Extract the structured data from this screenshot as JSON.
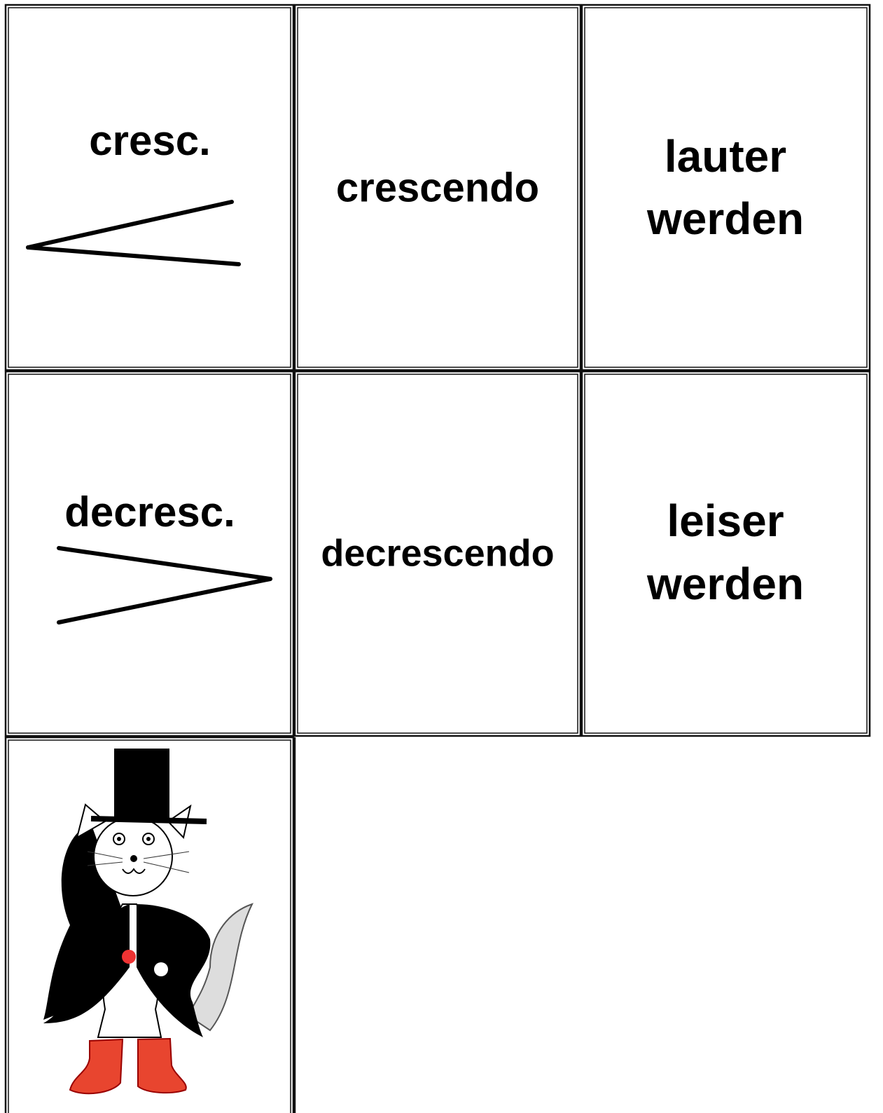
{
  "cards": [
    {
      "text": "cresc."
    },
    {
      "text": "crescendo"
    },
    {
      "lines": [
        "lauter",
        "werden"
      ]
    },
    {
      "text": "decresc."
    },
    {
      "text": "decrescendo"
    },
    {
      "lines": [
        "leiser",
        "werden"
      ]
    }
  ]
}
